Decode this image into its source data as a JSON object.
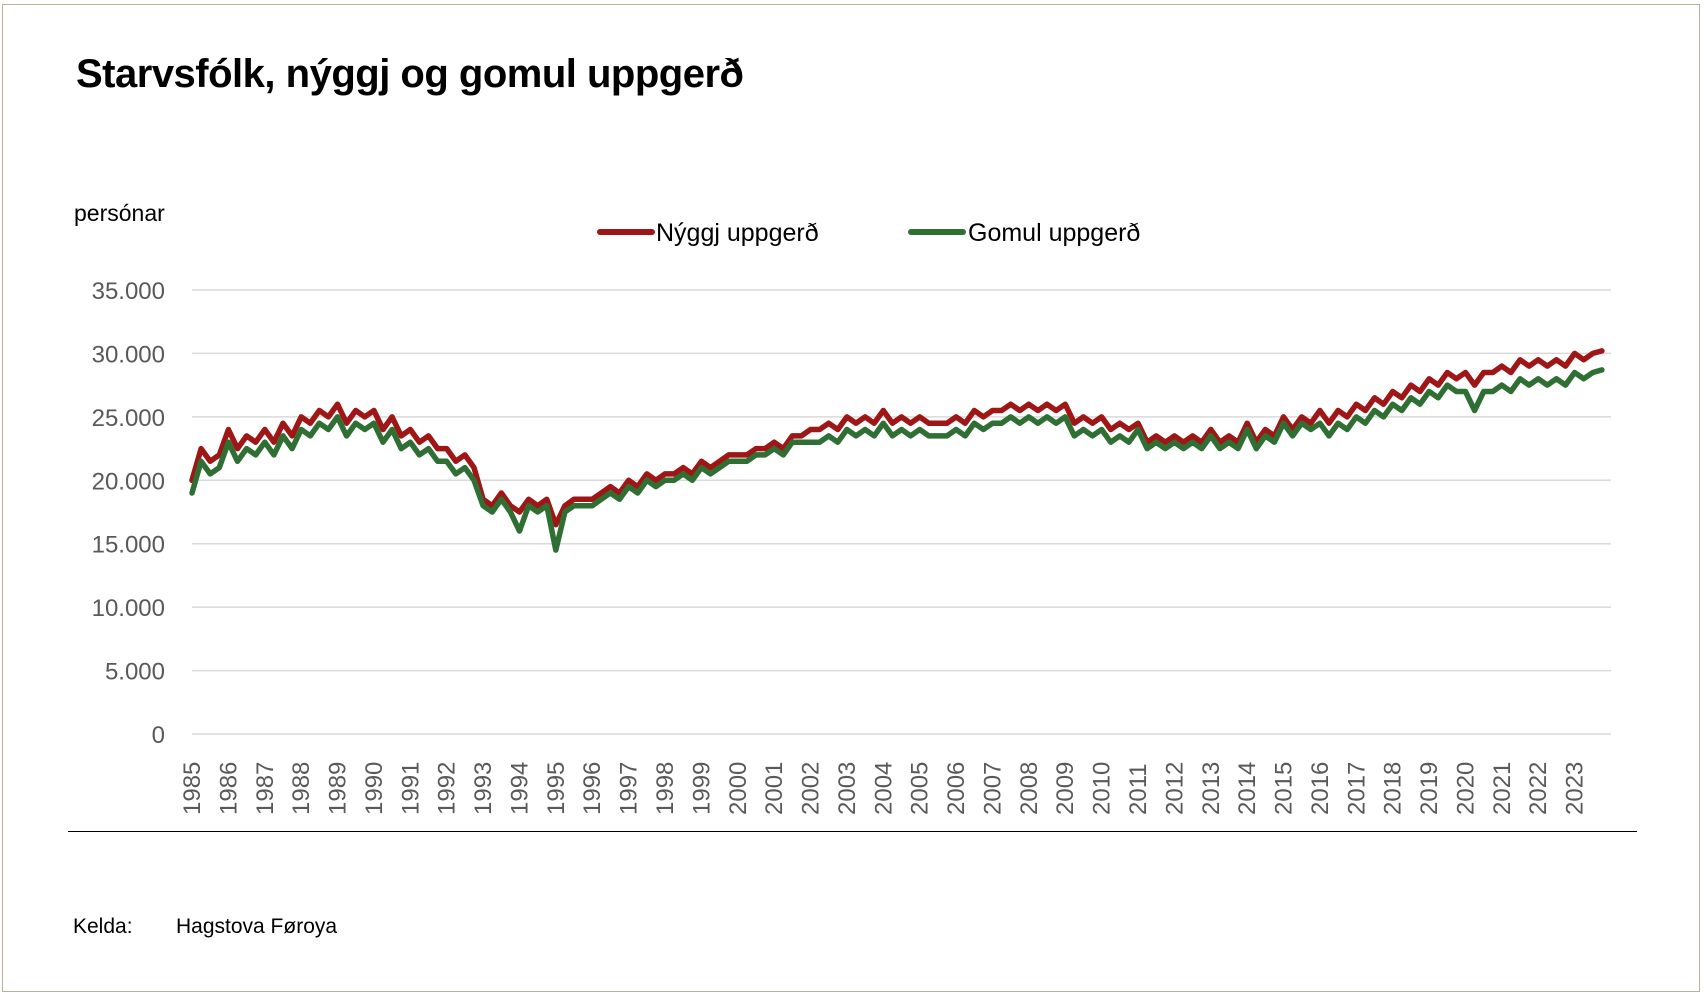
{
  "title": "Starvsfólk, nýggj og gomul uppgerð",
  "unit_label": "persónar",
  "source": {
    "label": "Kelda:",
    "value": "Hagstova Føroya"
  },
  "colors": {
    "new": "#9e1616",
    "old": "#2f6f33",
    "grid": "#d9d9d9"
  },
  "chart_data": {
    "type": "line",
    "title": "Starvsfólk, nýggj og gomul uppgerð",
    "ylabel": "persónar",
    "xlabel": "",
    "ylim": [
      0,
      35000
    ],
    "yticks": [
      0,
      5000,
      10000,
      15000,
      20000,
      25000,
      30000,
      35000
    ],
    "ytick_labels": [
      "0",
      "5.000",
      "10.000",
      "15.000",
      "20.000",
      "25.000",
      "30.000",
      "35.000"
    ],
    "xlim": [
      1985,
      2024
    ],
    "xtick_labels": [
      "1985",
      "1986",
      "1987",
      "1988",
      "1989",
      "1990",
      "1991",
      "1992",
      "1993",
      "1994",
      "1995",
      "1996",
      "1997",
      "1998",
      "1999",
      "2000",
      "2001",
      "2002",
      "2003",
      "2004",
      "2005",
      "2006",
      "2007",
      "2008",
      "2009",
      "2010",
      "2011",
      "2012",
      "2013",
      "2014",
      "2015",
      "2016",
      "2017",
      "2018",
      "2019",
      "2020",
      "2021",
      "2022",
      "2023"
    ],
    "grid": true,
    "legend_position": "top-center",
    "x_start": 1985,
    "x_step": 0.25,
    "series": [
      {
        "name": "Nýggj uppgerð",
        "color": "#9e1616",
        "values": [
          20000,
          22500,
          21500,
          22000,
          24000,
          22500,
          23500,
          23000,
          24000,
          23000,
          24500,
          23500,
          25000,
          24500,
          25500,
          25000,
          26000,
          24500,
          25500,
          25000,
          25500,
          24000,
          25000,
          23500,
          24000,
          23000,
          23500,
          22500,
          22500,
          21500,
          22000,
          21000,
          18500,
          18000,
          19000,
          18000,
          17500,
          18500,
          18000,
          18500,
          16500,
          18000,
          18500,
          18500,
          18500,
          19000,
          19500,
          19000,
          20000,
          19500,
          20500,
          20000,
          20500,
          20500,
          21000,
          20500,
          21500,
          21000,
          21500,
          22000,
          22000,
          22000,
          22500,
          22500,
          23000,
          22500,
          23500,
          23500,
          24000,
          24000,
          24500,
          24000,
          25000,
          24500,
          25000,
          24500,
          25500,
          24500,
          25000,
          24500,
          25000,
          24500,
          24500,
          24500,
          25000,
          24500,
          25500,
          25000,
          25500,
          25500,
          26000,
          25500,
          26000,
          25500,
          26000,
          25500,
          26000,
          24500,
          25000,
          24500,
          25000,
          24000,
          24500,
          24000,
          24500,
          23000,
          23500,
          23000,
          23500,
          23000,
          23500,
          23000,
          24000,
          23000,
          23500,
          23000,
          24500,
          23000,
          24000,
          23500,
          25000,
          24000,
          25000,
          24500,
          25500,
          24500,
          25500,
          25000,
          26000,
          25500,
          26500,
          26000,
          27000,
          26500,
          27500,
          27000,
          28000,
          27500,
          28500,
          28000,
          28500,
          27500,
          28500,
          28500,
          29000,
          28500,
          29500,
          29000,
          29500,
          29000,
          29500,
          29000,
          30000,
          29500,
          30000,
          30200
        ]
      },
      {
        "name": "Gomul uppgerð",
        "color": "#2f6f33",
        "values": [
          19000,
          21500,
          20500,
          21000,
          23000,
          21500,
          22500,
          22000,
          23000,
          22000,
          23500,
          22500,
          24000,
          23500,
          24500,
          24000,
          25000,
          23500,
          24500,
          24000,
          24500,
          23000,
          24000,
          22500,
          23000,
          22000,
          22500,
          21500,
          21500,
          20500,
          21000,
          20000,
          18000,
          17500,
          18500,
          17500,
          16000,
          18000,
          17500,
          18000,
          14500,
          17500,
          18000,
          18000,
          18000,
          18500,
          19000,
          18500,
          19500,
          19000,
          20000,
          19500,
          20000,
          20000,
          20500,
          20000,
          21000,
          20500,
          21000,
          21500,
          21500,
          21500,
          22000,
          22000,
          22500,
          22000,
          23000,
          23000,
          23000,
          23000,
          23500,
          23000,
          24000,
          23500,
          24000,
          23500,
          24500,
          23500,
          24000,
          23500,
          24000,
          23500,
          23500,
          23500,
          24000,
          23500,
          24500,
          24000,
          24500,
          24500,
          25000,
          24500,
          25000,
          24500,
          25000,
          24500,
          25000,
          23500,
          24000,
          23500,
          24000,
          23000,
          23500,
          23000,
          24000,
          22500,
          23000,
          22500,
          23000,
          22500,
          23000,
          22500,
          23500,
          22500,
          23000,
          22500,
          24000,
          22500,
          23500,
          23000,
          24500,
          23500,
          24500,
          24000,
          24500,
          23500,
          24500,
          24000,
          25000,
          24500,
          25500,
          25000,
          26000,
          25500,
          26500,
          26000,
          27000,
          26500,
          27500,
          27000,
          27000,
          25500,
          27000,
          27000,
          27500,
          27000,
          28000,
          27500,
          28000,
          27500,
          28000,
          27500,
          28500,
          28000,
          28500,
          28700
        ]
      }
    ]
  }
}
